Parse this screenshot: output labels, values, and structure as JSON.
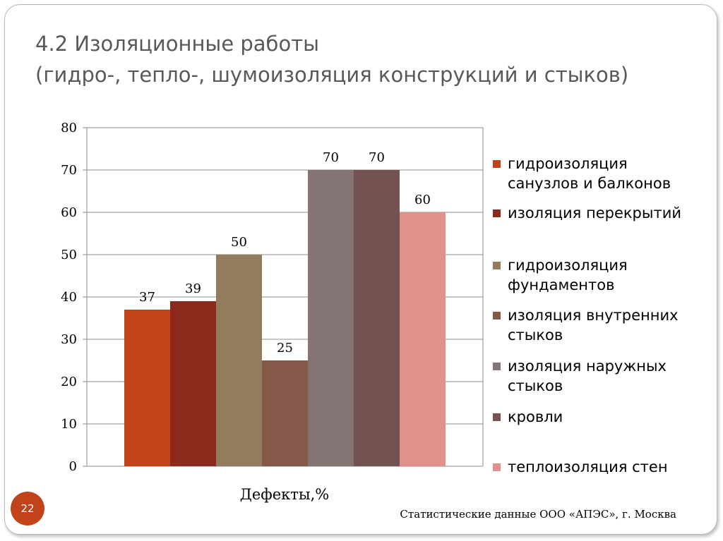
{
  "slide": {
    "title_line1": "4.2 Изоляционные работы",
    "title_line2": "(гидро-, тепло-, шумоизоляция конструкций и стыков)",
    "page_number": "22",
    "source": "Статистические данные ООО «АПЭС», г. Москва"
  },
  "chart_data": {
    "type": "bar",
    "title": "",
    "xlabel": "Дефекты,%",
    "ylabel": "",
    "ylim": [
      0,
      80
    ],
    "yticks": [
      0,
      10,
      20,
      30,
      40,
      50,
      60,
      70,
      80
    ],
    "grid": true,
    "legend_position": "right",
    "series": [
      {
        "name": "гидроизоляция санузлов и балконов",
        "value": 37,
        "color": "#c0431a"
      },
      {
        "name": "изоляция перекрытий",
        "value": 39,
        "color": "#8b2a1c"
      },
      {
        "name": "гидроизоляция фундаментов",
        "value": 50,
        "color": "#937c5c"
      },
      {
        "name": "изоляция внутренних стыков",
        "value": 25,
        "color": "#85594a"
      },
      {
        "name": "изоляция наружных стыков",
        "value": 70,
        "color": "#847474"
      },
      {
        "name": "кровли",
        "value": 70,
        "color": "#735252"
      },
      {
        "name": "теплоизоляция стен",
        "value": 60,
        "color": "#df918a"
      }
    ]
  }
}
